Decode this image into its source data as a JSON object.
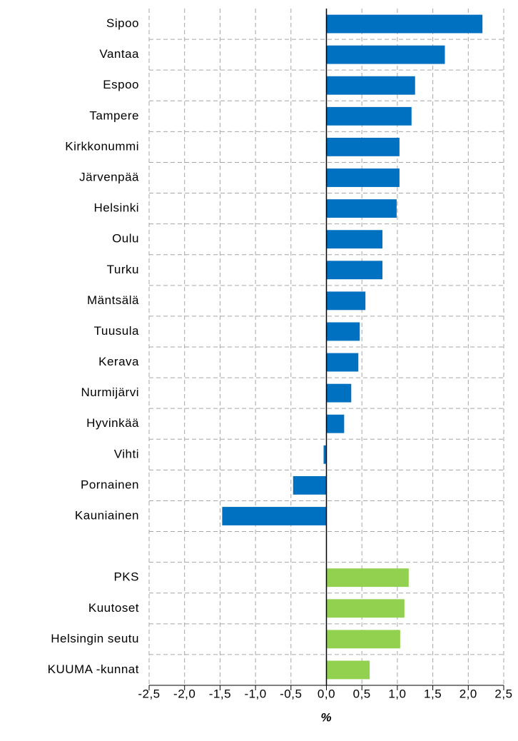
{
  "chart_data": {
    "type": "barh",
    "categories": [
      "Sipoo",
      "Vantaa",
      "Espoo",
      "Tampere",
      "Kirkkonummi",
      "Järvenpää",
      "Helsinki",
      "Oulu",
      "Turku",
      "Mäntsälä",
      "Tuusula",
      "Kerava",
      "Nurmijärvi",
      "Hyvinkää",
      "Vihti",
      "Pornainen",
      "Kauniainen",
      null,
      "PKS",
      "Kuutoset",
      "Helsingin seutu",
      "KUUMA -kunnat"
    ],
    "values": [
      2.2,
      1.67,
      1.25,
      1.2,
      1.03,
      1.03,
      0.99,
      0.79,
      0.79,
      0.55,
      0.47,
      0.45,
      0.35,
      0.25,
      -0.04,
      -0.47,
      -1.47,
      null,
      1.16,
      1.1,
      1.04,
      0.61
    ],
    "colors": [
      "#0070c0",
      "#0070c0",
      "#0070c0",
      "#0070c0",
      "#0070c0",
      "#0070c0",
      "#0070c0",
      "#0070c0",
      "#0070c0",
      "#0070c0",
      "#0070c0",
      "#0070c0",
      "#0070c0",
      "#0070c0",
      "#0070c0",
      "#0070c0",
      "#0070c0",
      "#0070c0",
      "#92d050",
      "#92d050",
      "#92d050",
      "#92d050"
    ],
    "xlabel": "%",
    "xlim": [
      -2.5,
      2.5
    ],
    "xticks": [
      {
        "value": -2.5,
        "label": "-2,5"
      },
      {
        "value": -2,
        "label": "-2,0"
      },
      {
        "value": -1.5,
        "label": "-1,5"
      },
      {
        "value": -1,
        "label": "-1,0"
      },
      {
        "value": -0.5,
        "label": "-0,5"
      },
      {
        "value": 0,
        "label": "0,0"
      },
      {
        "value": 0.5,
        "label": "0,5"
      },
      {
        "value": 1,
        "label": "1,0"
      },
      {
        "value": 1.5,
        "label": "1,5"
      },
      {
        "value": 2,
        "label": "2,0"
      },
      {
        "value": 2.5,
        "label": "2,5"
      }
    ],
    "grid": true
  }
}
